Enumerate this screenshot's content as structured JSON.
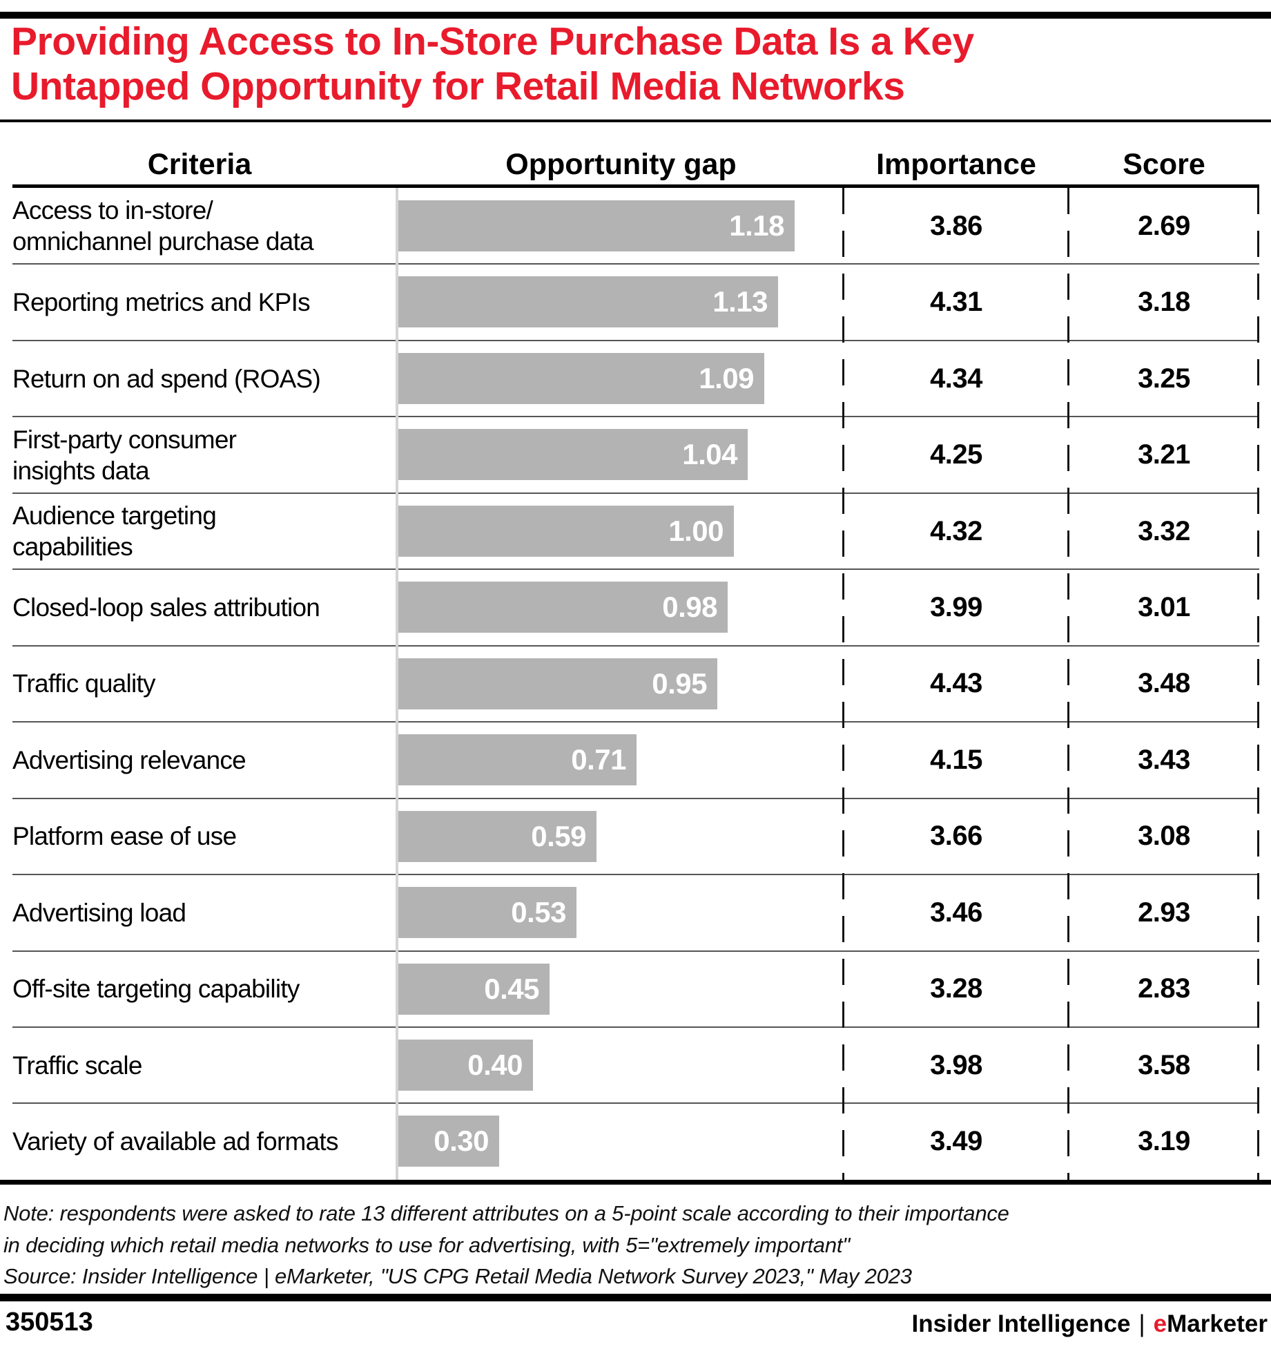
{
  "title": {
    "lines": [
      "Providing Access to In-Store Purchase Data Is a Key",
      "Untapped Opportunity for Retail Media Networks"
    ]
  },
  "colors": {
    "accent_red": "#e81b2c",
    "bar_gray": "#b3b3b3",
    "bar_value_text": "#ffffff"
  },
  "chart_data": {
    "type": "bar",
    "title": "Providing Access to In-Store Purchase Data Is a Key Untapped Opportunity for Retail Media Networks",
    "columns": [
      "Criteria",
      "Opportunity gap",
      "Importance",
      "Score"
    ],
    "xlim": [
      0,
      1.18
    ],
    "grid": false,
    "legend": "none",
    "bar_orientation": "horizontal",
    "rows": [
      {
        "criteria": "Access to in-store/\nomnichannel purchase data",
        "opportunity_gap": 1.18,
        "importance": 3.86,
        "score": 2.69
      },
      {
        "criteria": "Reporting metrics and KPIs",
        "opportunity_gap": 1.13,
        "importance": 4.31,
        "score": 3.18
      },
      {
        "criteria": "Return on ad spend (ROAS)",
        "opportunity_gap": 1.09,
        "importance": 4.34,
        "score": 3.25
      },
      {
        "criteria": "First-party consumer\ninsights data",
        "opportunity_gap": 1.04,
        "importance": 4.25,
        "score": 3.21
      },
      {
        "criteria": "Audience targeting\ncapabilities",
        "opportunity_gap": 1.0,
        "importance": 4.32,
        "score": 3.32
      },
      {
        "criteria": "Closed-loop sales attribution",
        "opportunity_gap": 0.98,
        "importance": 3.99,
        "score": 3.01
      },
      {
        "criteria": "Traffic quality",
        "opportunity_gap": 0.95,
        "importance": 4.43,
        "score": 3.48
      },
      {
        "criteria": "Advertising relevance",
        "opportunity_gap": 0.71,
        "importance": 4.15,
        "score": 3.43
      },
      {
        "criteria": "Platform ease of use",
        "opportunity_gap": 0.59,
        "importance": 3.66,
        "score": 3.08
      },
      {
        "criteria": "Advertising load",
        "opportunity_gap": 0.53,
        "importance": 3.46,
        "score": 2.93
      },
      {
        "criteria": "Off-site targeting capability",
        "opportunity_gap": 0.45,
        "importance": 3.28,
        "score": 2.83
      },
      {
        "criteria": "Traffic scale",
        "opportunity_gap": 0.4,
        "importance": 3.98,
        "score": 3.58
      },
      {
        "criteria": "Variety of available ad formats",
        "opportunity_gap": 0.3,
        "importance": 3.49,
        "score": 3.19
      }
    ]
  },
  "notes": {
    "line1": "Note: respondents were asked to rate 13 different attributes on a 5-point scale according to their importance",
    "line2": "in deciding which retail media networks to use for advertising, with 5=\"extremely important\"",
    "source": "Source: Insider Intelligence | eMarketer, \"US CPG Retail Media Network Survey 2023,\" May 2023"
  },
  "footer": {
    "chart_id": "350513",
    "brand_left": "Insider Intelligence",
    "separator": "|",
    "brand_e": "e",
    "brand_rest": "Marketer"
  }
}
